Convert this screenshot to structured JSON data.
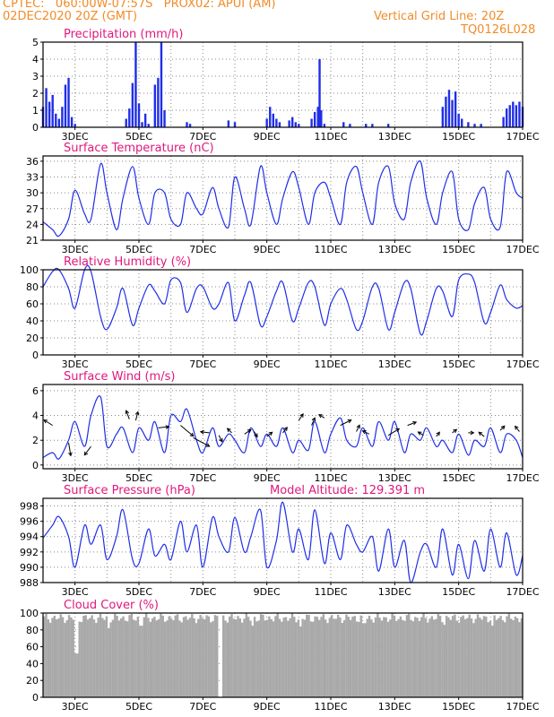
{
  "header": {
    "line1_left": "CPTEC:   060:00W-07:57S   PROX02: APUI (AM)",
    "line2_left": "02DEC2020 20Z (GMT)",
    "line1_right": "Vertical Grid Line: 20Z",
    "line2_right": "TQ0126L028"
  },
  "colors": {
    "header": "#f08c28",
    "title": "#e0187c",
    "series": "#1f2ee8",
    "cloud": "#a9a9a9",
    "arrow": "#000000",
    "grid": "#888888"
  },
  "chart_data": [
    {
      "type": "bar",
      "title": "Precipitation (mm/h)",
      "x_tick_labels": [
        "3DEC",
        "5DEC",
        "7DEC",
        "9DEC",
        "11DEC",
        "13DEC",
        "15DEC",
        "17DEC"
      ],
      "x_tick_days": [
        3,
        5,
        7,
        9,
        11,
        13,
        15,
        17
      ],
      "xlim": [
        2.0,
        17.0
      ],
      "ylim": [
        0,
        5
      ],
      "y_ticks": [
        0,
        1,
        2,
        3,
        4,
        5
      ],
      "x_days": [
        2.0,
        2.1,
        2.2,
        2.3,
        2.4,
        2.5,
        2.6,
        2.7,
        2.8,
        2.9,
        3.0,
        4.6,
        4.7,
        4.8,
        4.9,
        5.0,
        5.1,
        5.2,
        5.3,
        5.5,
        5.6,
        5.7,
        5.8,
        6.5,
        6.6,
        7.8,
        8.0,
        9.0,
        9.1,
        9.2,
        9.3,
        9.4,
        9.7,
        9.8,
        9.9,
        10.0,
        10.4,
        10.5,
        10.6,
        10.65,
        10.7,
        10.8,
        11.4,
        11.6,
        12.1,
        12.3,
        12.8,
        14.5,
        14.6,
        14.7,
        14.8,
        14.9,
        15.0,
        15.1,
        15.3,
        15.5,
        15.7,
        16.4,
        16.5,
        16.6,
        16.7,
        16.8,
        16.9,
        17.0
      ],
      "values": [
        1.2,
        2.3,
        1.5,
        1.9,
        0.8,
        0.5,
        1.2,
        2.5,
        2.9,
        0.6,
        0.2,
        0.5,
        1.1,
        2.6,
        5.0,
        1.4,
        0.3,
        0.8,
        0.2,
        2.5,
        2.9,
        5.0,
        1.0,
        0.3,
        0.2,
        0.4,
        0.3,
        0.5,
        1.2,
        0.8,
        0.5,
        0.3,
        0.4,
        0.6,
        0.3,
        0.2,
        0.5,
        0.9,
        1.2,
        4.0,
        1.0,
        0.2,
        0.3,
        0.2,
        0.2,
        0.2,
        0.2,
        1.2,
        1.8,
        2.2,
        1.6,
        2.1,
        0.8,
        0.5,
        0.3,
        0.2,
        0.2,
        0.6,
        1.1,
        1.3,
        1.5,
        1.3,
        1.5,
        1.2
      ]
    },
    {
      "type": "line",
      "title": "Surface Temperature (nC)",
      "x_tick_labels": [
        "3DEC",
        "5DEC",
        "7DEC",
        "9DEC",
        "11DEC",
        "13DEC",
        "15DEC",
        "17DEC"
      ],
      "x_tick_days": [
        3,
        5,
        7,
        9,
        11,
        13,
        15,
        17
      ],
      "xlim": [
        2.0,
        17.0
      ],
      "ylim": [
        21,
        37
      ],
      "y_ticks": [
        21,
        24,
        27,
        30,
        33,
        36
      ],
      "x_days": [
        2.0,
        2.3,
        2.5,
        2.8,
        3.0,
        3.3,
        3.5,
        3.8,
        4.0,
        4.3,
        4.5,
        4.8,
        5.0,
        5.3,
        5.5,
        5.8,
        6.0,
        6.3,
        6.5,
        6.8,
        7.0,
        7.3,
        7.5,
        7.8,
        8.0,
        8.3,
        8.5,
        8.8,
        9.0,
        9.3,
        9.5,
        9.8,
        10.0,
        10.3,
        10.5,
        10.8,
        11.0,
        11.3,
        11.5,
        11.8,
        12.0,
        12.3,
        12.5,
        12.8,
        13.0,
        13.3,
        13.5,
        13.8,
        14.0,
        14.3,
        14.5,
        14.8,
        15.0,
        15.3,
        15.5,
        15.8,
        16.0,
        16.3,
        16.5,
        16.8,
        17.0
      ],
      "values": [
        24.5,
        23,
        21.8,
        25,
        30.5,
        26,
        25,
        35.5,
        30,
        23,
        29,
        35,
        29,
        24,
        30,
        30,
        25,
        24,
        30,
        27,
        26,
        31,
        27,
        23.5,
        33,
        27,
        24,
        35,
        30,
        24,
        29,
        34,
        31,
        24,
        30,
        32,
        29,
        24,
        32,
        35,
        30,
        24,
        32,
        35,
        28,
        25,
        32,
        36,
        29,
        24,
        30,
        34,
        25,
        23,
        28,
        31,
        25,
        23.5,
        34,
        30,
        29
      ]
    },
    {
      "type": "line",
      "title": "Relative Humidity (%)",
      "x_tick_labels": [
        "3DEC",
        "5DEC",
        "7DEC",
        "9DEC",
        "11DEC",
        "13DEC",
        "15DEC",
        "17DEC"
      ],
      "x_tick_days": [
        3,
        5,
        7,
        9,
        11,
        13,
        15,
        17
      ],
      "xlim": [
        2.0,
        17.0
      ],
      "ylim": [
        0,
        100
      ],
      "y_ticks": [
        0,
        20,
        40,
        60,
        80,
        100
      ],
      "x_days": [
        2.0,
        2.3,
        2.5,
        2.8,
        3.0,
        3.3,
        3.5,
        3.8,
        4.0,
        4.3,
        4.5,
        4.8,
        5.0,
        5.3,
        5.5,
        5.8,
        6.0,
        6.3,
        6.5,
        6.8,
        7.0,
        7.3,
        7.5,
        7.8,
        8.0,
        8.3,
        8.5,
        8.8,
        9.0,
        9.3,
        9.5,
        9.8,
        10.0,
        10.3,
        10.5,
        10.8,
        11.0,
        11.3,
        11.5,
        11.8,
        12.0,
        12.3,
        12.5,
        12.8,
        13.0,
        13.3,
        13.5,
        13.8,
        14.0,
        14.3,
        14.5,
        14.8,
        15.0,
        15.3,
        15.5,
        15.8,
        16.0,
        16.3,
        16.5,
        16.8,
        17.0
      ],
      "values": [
        80,
        98,
        100,
        78,
        55,
        100,
        98,
        45,
        30,
        55,
        78,
        35,
        55,
        82,
        75,
        60,
        88,
        85,
        50,
        78,
        80,
        55,
        60,
        85,
        40,
        70,
        85,
        35,
        45,
        75,
        85,
        40,
        55,
        85,
        80,
        35,
        60,
        78,
        65,
        30,
        40,
        80,
        78,
        30,
        50,
        85,
        78,
        25,
        40,
        78,
        75,
        45,
        88,
        95,
        85,
        38,
        50,
        82,
        65,
        55,
        58
      ]
    },
    {
      "type": "line",
      "title": "Surface Wind (m/s)",
      "x_tick_labels": [
        "3DEC",
        "5DEC",
        "7DEC",
        "9DEC",
        "11DEC",
        "13DEC",
        "15DEC",
        "17DEC"
      ],
      "x_tick_days": [
        3,
        5,
        7,
        9,
        11,
        13,
        15,
        17
      ],
      "xlim": [
        2.0,
        17.0
      ],
      "ylim": [
        -0.3,
        6.5
      ],
      "y_ticks": [
        0,
        2,
        4,
        6
      ],
      "x_days": [
        2.0,
        2.3,
        2.5,
        2.8,
        3.0,
        3.3,
        3.5,
        3.8,
        4.0,
        4.3,
        4.5,
        4.8,
        5.0,
        5.3,
        5.5,
        5.8,
        6.0,
        6.3,
        6.5,
        6.8,
        7.0,
        7.3,
        7.5,
        7.8,
        8.0,
        8.3,
        8.5,
        8.8,
        9.0,
        9.3,
        9.5,
        9.8,
        10.0,
        10.3,
        10.5,
        10.8,
        11.0,
        11.3,
        11.5,
        11.8,
        12.0,
        12.3,
        12.5,
        12.8,
        13.0,
        13.3,
        13.5,
        13.8,
        14.0,
        14.3,
        14.5,
        14.8,
        15.0,
        15.3,
        15.5,
        15.8,
        16.0,
        16.3,
        16.5,
        16.8,
        17.0
      ],
      "values": [
        0.6,
        1.0,
        0.5,
        2.0,
        3.5,
        1.5,
        4.0,
        5.5,
        1.5,
        2.5,
        3.0,
        1.0,
        3.0,
        2.0,
        3.5,
        1.0,
        4.0,
        3.5,
        4.5,
        2.0,
        1.0,
        3.0,
        1.5,
        2.5,
        2.0,
        1.0,
        3.0,
        1.5,
        2.5,
        1.5,
        3.0,
        1.0,
        2.0,
        1.2,
        3.5,
        1.0,
        2.5,
        3.8,
        2.0,
        1.5,
        3.0,
        1.5,
        3.5,
        2.0,
        3.5,
        1.0,
        2.5,
        2.0,
        3.0,
        1.5,
        2.0,
        1.0,
        2.5,
        0.8,
        2.0,
        1.5,
        3.0,
        1.0,
        2.5,
        2.0,
        0.6
      ],
      "arrows_day": [
        2.3,
        2.8,
        3.5,
        4.7,
        4.9,
        5.6,
        6.3,
        6.7,
        7.2,
        7.5,
        7.9,
        8.3,
        8.6,
        9.0,
        9.5,
        10.0,
        10.4,
        10.8,
        11.3,
        11.8,
        12.2,
        12.8,
        13.4,
        13.9,
        14.3,
        14.8,
        15.3,
        15.8,
        16.3,
        16.9
      ],
      "arrows_speed": [
        3.2,
        1.8,
        1.5,
        3.7,
        3.6,
        3.0,
        3.2,
        2.2,
        2.6,
        2.4,
        2.6,
        2.5,
        2.7,
        2.3,
        2.6,
        3.6,
        3.2,
        3.8,
        3.2,
        2.7,
        2.5,
        2.4,
        3.2,
        2.4,
        2.3,
        2.6,
        2.6,
        2.3,
        2.8,
        2.7
      ],
      "arrows_u": [
        -0.8,
        0.2,
        -0.6,
        -0.3,
        0.2,
        1.0,
        1.2,
        1.5,
        -0.8,
        0.3,
        -0.4,
        0.6,
        0.3,
        0.5,
        0.4,
        0.4,
        0.3,
        -0.5,
        1.0,
        0.3,
        -0.6,
        1.0,
        0.8,
        -0.5,
        0.3,
        0.4,
        0.5,
        -0.5,
        0.4,
        -0.4
      ],
      "arrows_v": [
        0.5,
        -1.2,
        -0.8,
        0.8,
        0.8,
        0.1,
        -1.0,
        -0.8,
        0.1,
        -0.6,
        0.4,
        0.4,
        -0.5,
        0.4,
        0.5,
        0.6,
        0.7,
        0.3,
        0.5,
        0.6,
        0.3,
        0.6,
        0.3,
        0.3,
        0.4,
        0.3,
        0.0,
        0.4,
        0.4,
        0.5
      ]
    },
    {
      "type": "line",
      "title": "Surface Pressure (hPa)",
      "annotation": "Model Altitude: 129.391  m",
      "x_tick_labels": [
        "3DEC",
        "5DEC",
        "7DEC",
        "9DEC",
        "11DEC",
        "13DEC",
        "15DEC",
        "17DEC"
      ],
      "x_tick_days": [
        3,
        5,
        7,
        9,
        11,
        13,
        15,
        17
      ],
      "xlim": [
        2.0,
        17.0
      ],
      "ylim": [
        988,
        999
      ],
      "y_ticks": [
        988,
        990,
        992,
        994,
        996,
        998
      ],
      "x_days": [
        2.0,
        2.3,
        2.5,
        2.8,
        3.0,
        3.3,
        3.5,
        3.8,
        4.0,
        4.3,
        4.5,
        4.8,
        5.0,
        5.3,
        5.5,
        5.8,
        6.0,
        6.3,
        6.5,
        6.8,
        7.0,
        7.3,
        7.5,
        7.8,
        8.0,
        8.3,
        8.5,
        8.8,
        9.0,
        9.3,
        9.5,
        9.8,
        10.0,
        10.3,
        10.5,
        10.8,
        11.0,
        11.3,
        11.5,
        11.8,
        12.0,
        12.3,
        12.5,
        12.8,
        13.0,
        13.3,
        13.5,
        13.8,
        14.0,
        14.3,
        14.5,
        14.8,
        15.0,
        15.3,
        15.5,
        15.8,
        16.0,
        16.3,
        16.5,
        16.8,
        17.0
      ],
      "values": [
        993.8,
        995.5,
        996.6,
        994.0,
        990.0,
        995.5,
        993.0,
        995.5,
        991.0,
        994.0,
        997.5,
        991.0,
        990.5,
        995.0,
        991.5,
        993.0,
        991.0,
        996.0,
        992.0,
        995.5,
        990.0,
        996.5,
        994.0,
        992.0,
        996.5,
        992.0,
        994.0,
        997.5,
        990.0,
        993.5,
        998.5,
        992.0,
        995.0,
        991.0,
        997.5,
        990.5,
        994.5,
        991.0,
        995.5,
        993.0,
        992.0,
        994.0,
        989.5,
        995.0,
        990.0,
        993.5,
        988.0,
        992.0,
        993.0,
        990.0,
        995.0,
        989.0,
        993.0,
        988.5,
        993.5,
        989.5,
        995.0,
        990.0,
        994.5,
        989.0,
        991.5
      ]
    },
    {
      "type": "bar",
      "title": "Cloud Cover (%)",
      "x_tick_labels": [
        "3DEC",
        "5DEC",
        "7DEC",
        "9DEC",
        "11DEC",
        "13DEC",
        "15DEC",
        "17DEC"
      ],
      "x_tick_days": [
        3,
        5,
        7,
        9,
        11,
        13,
        15,
        17
      ],
      "xlim": [
        2.0,
        17.0
      ],
      "ylim": [
        0,
        100
      ],
      "y_ticks": [
        0,
        20,
        40,
        60,
        80,
        100
      ],
      "typical_value": 94,
      "dips_day": [
        3.05,
        4.05,
        5.05,
        7.55,
        8.55,
        10.05,
        12.05,
        14.55,
        16.05
      ],
      "dips_value": [
        52,
        82,
        85,
        0,
        85,
        84,
        88,
        86,
        85
      ]
    }
  ]
}
